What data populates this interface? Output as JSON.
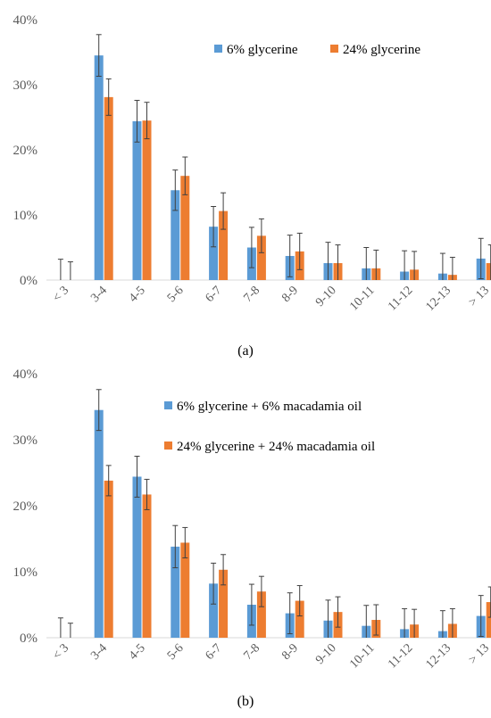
{
  "colors": {
    "series_1": "#5b9bd5",
    "series_2": "#ed7d31",
    "axis": "#d9d9d9",
    "error_bar": "#404040"
  },
  "chart_data": [
    {
      "type": "bar",
      "panel_label": "(a)",
      "categories": [
        "< 3",
        "3-4",
        "4-5",
        "5-6",
        "6-7",
        "7-8",
        "8-9",
        "9-10",
        "10-11",
        "11-12",
        "12-13",
        "> 13"
      ],
      "series": [
        {
          "name": "6% glycerine",
          "values": [
            0,
            34.5,
            24.4,
            13.8,
            8.2,
            5.0,
            3.7,
            2.6,
            1.8,
            1.3,
            1.0,
            3.3
          ],
          "errors": [
            3.2,
            3.2,
            3.2,
            3.1,
            3.1,
            3.1,
            3.2,
            3.2,
            3.2,
            3.2,
            3.1,
            3.1
          ]
        },
        {
          "name": "24% glycerine",
          "values": [
            0,
            28.1,
            24.5,
            16.0,
            10.6,
            6.8,
            4.4,
            2.6,
            1.8,
            1.6,
            0.8,
            2.6
          ],
          "errors": [
            2.8,
            2.8,
            2.8,
            2.9,
            2.8,
            2.6,
            2.8,
            2.8,
            2.8,
            2.8,
            2.7,
            2.8
          ]
        }
      ],
      "y_ticks": [
        "0%",
        "10%",
        "20%",
        "30%",
        "40%"
      ],
      "ylim": [
        0,
        40
      ],
      "xlabel": "",
      "ylabel": "",
      "legend": "top-right",
      "grid": false
    },
    {
      "type": "bar",
      "panel_label": "(b)",
      "categories": [
        "< 3",
        "3-4",
        "4-5",
        "5-6",
        "6-7",
        "7-8",
        "8-9",
        "9-10",
        "10-11",
        "11-12",
        "12-13",
        "> 13"
      ],
      "series": [
        {
          "name": "6% glycerine + 6% macadamia oil",
          "values": [
            0,
            34.5,
            24.4,
            13.8,
            8.2,
            5.0,
            3.7,
            2.6,
            1.8,
            1.3,
            1.0,
            3.3
          ],
          "errors": [
            3.0,
            3.1,
            3.1,
            3.2,
            3.1,
            3.1,
            3.1,
            3.1,
            3.1,
            3.1,
            3.1,
            3.1
          ]
        },
        {
          "name": "24% glycerine + 24% macadamia oil",
          "values": [
            0,
            23.8,
            21.7,
            14.4,
            10.3,
            7.0,
            5.6,
            3.9,
            2.7,
            2.0,
            2.1,
            5.4
          ],
          "errors": [
            2.2,
            2.3,
            2.3,
            2.3,
            2.3,
            2.3,
            2.3,
            2.3,
            2.3,
            2.3,
            2.3,
            2.3
          ]
        }
      ],
      "y_ticks": [
        "0%",
        "10%",
        "20%",
        "30%",
        "40%"
      ],
      "ylim": [
        0,
        40
      ],
      "xlabel": "",
      "ylabel": "",
      "legend": "top-right",
      "grid": false
    }
  ]
}
